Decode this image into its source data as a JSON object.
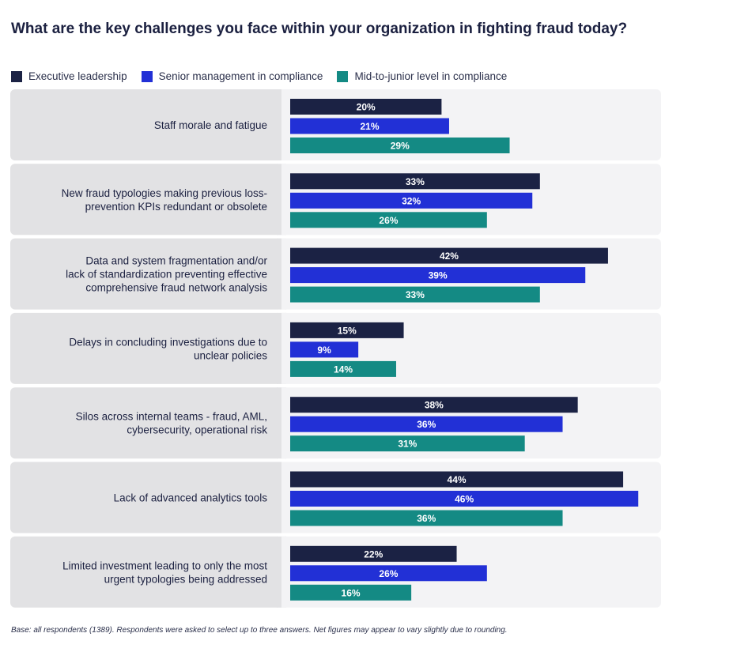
{
  "title": "What are the key challenges you face within your organization in fighting fraud today?",
  "footnote": "Base: all respondents (1389). Respondents were asked to select up to three answers. Net figures may appear to vary slightly due to rounding.",
  "chart_data": {
    "type": "bar",
    "orientation": "horizontal",
    "title": "What are the key challenges you face within your organization in fighting fraud today?",
    "legend_position": "top-left",
    "unit": "%",
    "categories": [
      [
        "Staff morale and fatigue"
      ],
      [
        "New fraud typologies making previous loss-",
        "prevention KPIs redundant or obsolete"
      ],
      [
        "Data and system fragmentation and/or",
        "lack of standardization preventing effective",
        "comprehensive fraud network analysis"
      ],
      [
        "Delays in concluding investigations due to",
        "unclear policies"
      ],
      [
        "Silos across internal teams - fraud, AML,",
        "cybersecurity, operational risk"
      ],
      [
        "Lack of advanced analytics tools"
      ],
      [
        "Limited investment leading to only the most",
        "urgent typologies being addressed"
      ]
    ],
    "series": [
      {
        "name": "Executive leadership",
        "color": "#1b2244",
        "values": [
          20,
          33,
          42,
          15,
          38,
          44,
          22
        ]
      },
      {
        "name": "Senior management in compliance",
        "color": "#2230d6",
        "values": [
          21,
          32,
          39,
          9,
          36,
          46,
          26
        ]
      },
      {
        "name": "Mid-to-junior level in compliance",
        "color": "#148a84",
        "values": [
          29,
          26,
          33,
          14,
          31,
          36,
          16
        ]
      }
    ],
    "colors": {
      "label_panel": "#e2e2e4",
      "bar_panel": "#f3f3f5"
    }
  }
}
